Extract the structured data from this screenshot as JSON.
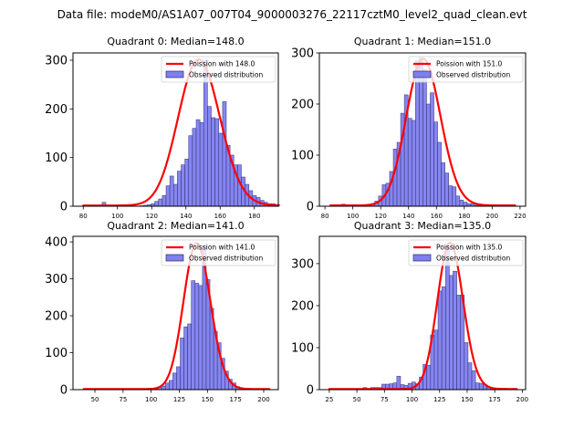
{
  "suptitle": "Data file: modeM0/AS1A07_007T04_9000003276_22117cztM0_level2_quad_clean.evt",
  "colors": {
    "bar_fill": "#7f7ff0",
    "bar_edge": "#2a2a6a",
    "poisson_line": "#ff0000"
  },
  "chart_data": [
    {
      "type": "bar",
      "title": "Quadrant 0: Median=148.0",
      "median": 148.0,
      "xlim": [
        74,
        194
      ],
      "ylim": [
        0,
        315
      ],
      "xticks": [
        80,
        100,
        120,
        140,
        160,
        180
      ],
      "yticks": [
        0,
        100,
        200,
        300
      ],
      "legend": [
        "Poission with 148.0",
        "Observed distribution"
      ],
      "legend_location": "upper right",
      "bin_start": 80,
      "bin_width": 2.2,
      "counts": [
        1,
        0,
        0,
        0,
        0,
        8,
        0,
        0,
        0,
        0,
        0,
        3,
        3,
        0,
        0,
        1,
        2,
        3,
        5,
        10,
        15,
        22,
        42,
        62,
        45,
        72,
        85,
        97,
        145,
        160,
        178,
        172,
        300,
        205,
        182,
        180,
        150,
        215,
        125,
        105,
        85,
        85,
        60,
        45,
        32,
        22,
        18,
        12,
        8,
        5,
        5,
        2
      ],
      "poisson_peak": 300
    },
    {
      "type": "bar",
      "title": "Quadrant 1: Median=151.0",
      "median": 151.0,
      "xlim": [
        76,
        224
      ],
      "ylim": [
        0,
        300
      ],
      "xticks": [
        80,
        100,
        120,
        140,
        160,
        180,
        200,
        220
      ],
      "yticks": [
        0,
        100,
        200,
        300
      ],
      "legend": [
        "Poission with 151.0",
        "Observed distribution"
      ],
      "legend_location": "upper right",
      "bin_start": 84,
      "bin_width": 2.65,
      "counts": [
        1,
        0,
        2,
        4,
        1,
        0,
        3,
        2,
        1,
        3,
        4,
        5,
        10,
        20,
        42,
        45,
        68,
        112,
        125,
        182,
        218,
        172,
        168,
        285,
        290,
        268,
        200,
        222,
        165,
        125,
        85,
        65,
        40,
        38,
        20,
        12,
        8,
        5,
        5,
        2,
        2,
        1,
        1,
        0,
        0,
        0,
        0,
        0,
        1,
        0
      ],
      "poisson_peak": 287
    },
    {
      "type": "bar",
      "title": "Quadrant 2: Median=141.0",
      "median": 141.0,
      "xlim": [
        30.5,
        213
      ],
      "ylim": [
        0,
        415
      ],
      "xticks": [
        50,
        75,
        100,
        125,
        150,
        175,
        200
      ],
      "yticks": [
        0,
        100,
        200,
        300,
        400
      ],
      "legend": [
        "Poission with 141.0",
        "Observed distribution"
      ],
      "legend_location": "upper right",
      "bin_start": 40,
      "bin_width": 3.3,
      "counts": [
        0,
        0,
        0,
        0,
        0,
        0,
        0,
        0,
        0,
        0,
        0,
        0,
        0,
        0,
        1,
        2,
        3,
        2,
        4,
        5,
        6,
        10,
        18,
        25,
        45,
        62,
        140,
        170,
        178,
        295,
        288,
        282,
        390,
        298,
        220,
        158,
        127,
        85,
        50,
        28,
        18,
        8,
        5,
        3,
        2,
        1,
        0,
        0,
        0,
        0
      ],
      "poisson_peak": 395
    },
    {
      "type": "bar",
      "title": "Quadrant 3: Median=135.0",
      "median": 135.0,
      "xlim": [
        16,
        203
      ],
      "ylim": [
        0,
        365
      ],
      "xticks": [
        25,
        50,
        75,
        100,
        125,
        150,
        175,
        200
      ],
      "yticks": [
        0,
        100,
        200,
        300
      ],
      "legend": [
        "Poission with 135.0",
        "Observed distribution"
      ],
      "legend_location": "upper right",
      "bin_start": 25,
      "bin_width": 3.4,
      "counts": [
        0,
        0,
        0,
        0,
        0,
        0,
        0,
        0,
        0,
        5,
        1,
        5,
        5,
        5,
        13,
        13,
        14,
        16,
        32,
        12,
        10,
        15,
        18,
        14,
        30,
        60,
        58,
        130,
        142,
        235,
        245,
        340,
        272,
        282,
        225,
        225,
        112,
        64,
        45,
        16,
        15,
        12,
        5,
        2,
        1,
        0,
        0,
        0,
        0,
        0
      ],
      "poisson_peak": 348
    }
  ]
}
